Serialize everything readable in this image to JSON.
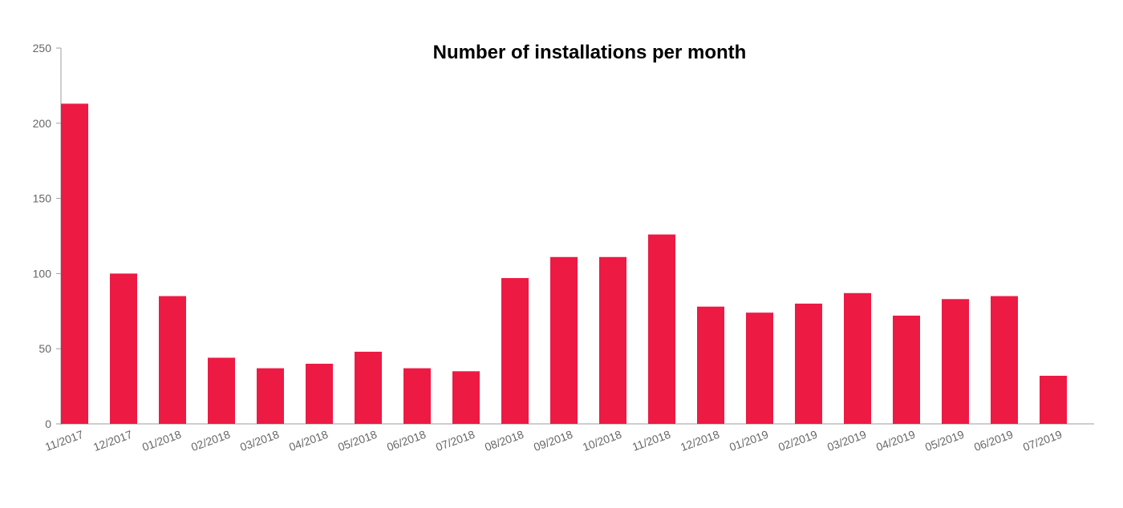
{
  "chart_data": {
    "type": "bar",
    "title": "Number of installations per month",
    "xlabel": "",
    "ylabel": "",
    "ylim": [
      0,
      250
    ],
    "yticks": [
      0,
      50,
      100,
      150,
      200,
      250
    ],
    "grid": false,
    "legend": "none",
    "bar_color": "#ED1A44",
    "categories": [
      "11/2017",
      "12/2017",
      "01/2018",
      "02/2018",
      "03/2018",
      "04/2018",
      "05/2018",
      "06/2018",
      "07/2018",
      "08/2018",
      "09/2018",
      "10/2018",
      "11/2018",
      "12/2018",
      "01/2019",
      "02/2019",
      "03/2019",
      "04/2019",
      "05/2019",
      "06/2019",
      "07/2019"
    ],
    "values": [
      213,
      100,
      85,
      44,
      37,
      40,
      48,
      37,
      35,
      97,
      111,
      111,
      126,
      78,
      74,
      80,
      87,
      72,
      83,
      85,
      32
    ]
  }
}
